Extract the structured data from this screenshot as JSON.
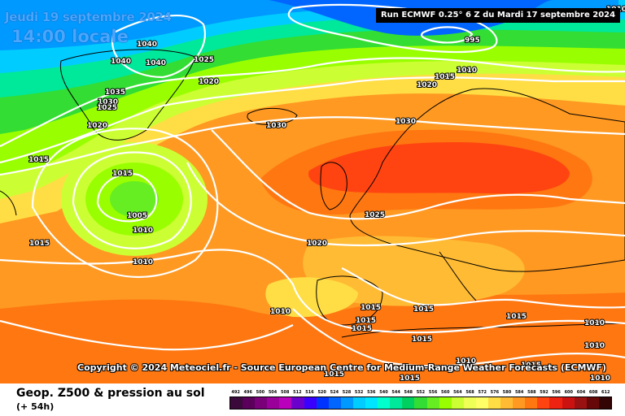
{
  "map": {
    "date": "Jeudi 19 septembre 2024",
    "local_time": "14:00 locale",
    "run": "Run ECMWF 0.25° 6 Z du Mardi 17 septembre 2024",
    "copyright": "Copyright © 2024 Meteociel.fr - Source European Centre for Medium-Range Weather Forecasts (ECMWF)",
    "isobar_labels": [
      "1040",
      "1040",
      "1040",
      "1025",
      "1020",
      "995",
      "1010",
      "1015",
      "1020",
      "1035",
      "1030",
      "1025",
      "1020",
      "1030",
      "1030",
      "1015",
      "1015",
      "1005",
      "1010",
      "1015",
      "1010",
      "1025",
      "1020",
      "1010",
      "1015",
      "1015",
      "1015",
      "1015",
      "1015",
      "1015",
      "1010",
      "1010",
      "1010",
      "1015",
      "1015",
      "1010",
      "1015",
      "1010"
    ]
  },
  "footer": {
    "title": "Geop. Z500 & pression au sol",
    "forecast_hour": "(+ 54h)"
  },
  "legend": {
    "values": [
      "492",
      "496",
      "500",
      "504",
      "508",
      "512",
      "516",
      "520",
      "524",
      "528",
      "532",
      "536",
      "540",
      "544",
      "548",
      "552",
      "556",
      "560",
      "564",
      "568",
      "572",
      "576",
      "580",
      "584",
      "588",
      "592",
      "596",
      "600",
      "604",
      "608",
      "612"
    ],
    "colors": [
      "#3a0a3a",
      "#5a005a",
      "#7a007a",
      "#9a009a",
      "#ba00ba",
      "#6b00cc",
      "#3a00ff",
      "#0033ff",
      "#0066ff",
      "#0099ff",
      "#00ccff",
      "#00e5ff",
      "#00ffcc",
      "#00e89a",
      "#00d060",
      "#33dd33",
      "#66ee22",
      "#99ff00",
      "#ccff33",
      "#eeff55",
      "#ffff66",
      "#ffdd44",
      "#ffbb33",
      "#ff9922",
      "#ff7711",
      "#ff4411",
      "#ee2211",
      "#cc1111",
      "#991111",
      "#660808",
      "#330404"
    ]
  }
}
